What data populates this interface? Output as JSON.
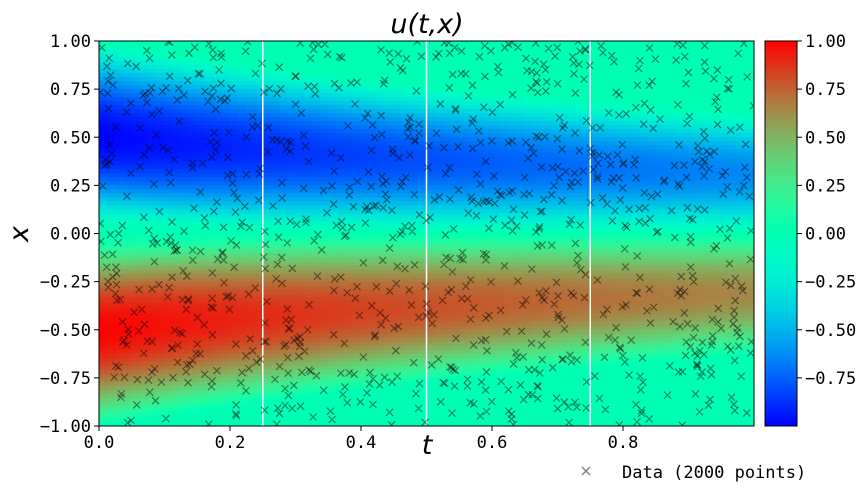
{
  "chart_data": {
    "type": "heatmap",
    "title": "u(t,x)",
    "xlabel": "t",
    "ylabel": "x",
    "xlim": [
      0,
      1
    ],
    "ylim": [
      -1,
      1
    ],
    "x_ticks": [
      {
        "value": 0.0,
        "label": "0.0"
      },
      {
        "value": 0.2,
        "label": "0.2"
      },
      {
        "value": 0.4,
        "label": "0.4"
      },
      {
        "value": 0.6,
        "label": "0.6"
      },
      {
        "value": 0.8,
        "label": "0.8"
      }
    ],
    "y_ticks": [
      {
        "value": 1.0,
        "label": "1.00"
      },
      {
        "value": 0.75,
        "label": "0.75"
      },
      {
        "value": 0.5,
        "label": "0.50"
      },
      {
        "value": 0.25,
        "label": "0.25"
      },
      {
        "value": 0.0,
        "label": "0.00"
      },
      {
        "value": -0.25,
        "label": "−0.25"
      },
      {
        "value": -0.5,
        "label": "−0.50"
      },
      {
        "value": -0.75,
        "label": "−0.75"
      },
      {
        "value": -1.0,
        "label": "−1.00"
      }
    ],
    "colorbar": {
      "colormap": "rainbow",
      "vmin": -1.0,
      "vmax": 1.0,
      "ticks": [
        {
          "value": 1.0,
          "label": "1.00"
        },
        {
          "value": 0.75,
          "label": "0.75"
        },
        {
          "value": 0.5,
          "label": "0.50"
        },
        {
          "value": 0.25,
          "label": "0.25"
        },
        {
          "value": 0.0,
          "label": "0.00"
        },
        {
          "value": -0.25,
          "label": "−0.25"
        },
        {
          "value": -0.5,
          "label": "−0.50"
        },
        {
          "value": -0.75,
          "label": "−0.75"
        }
      ]
    },
    "time_slice_lines": [
      0.25,
      0.5,
      0.75
    ],
    "field_extrema": [
      {
        "t": 0.0,
        "x": -0.4,
        "u": 1.0
      },
      {
        "t": 0.0,
        "x": 0.4,
        "u": -1.0
      },
      {
        "t": 0.5,
        "x": -0.3,
        "u": 0.95
      },
      {
        "t": 1.0,
        "x": -0.25,
        "u": 0.7
      },
      {
        "t": 1.0,
        "x": 0.25,
        "u": -0.55
      }
    ],
    "scatter": {
      "name": "Data (2000 points)",
      "marker": "x",
      "color": "#000000",
      "alpha": 0.45
    },
    "legend_position": "bottom-right (outside)"
  }
}
